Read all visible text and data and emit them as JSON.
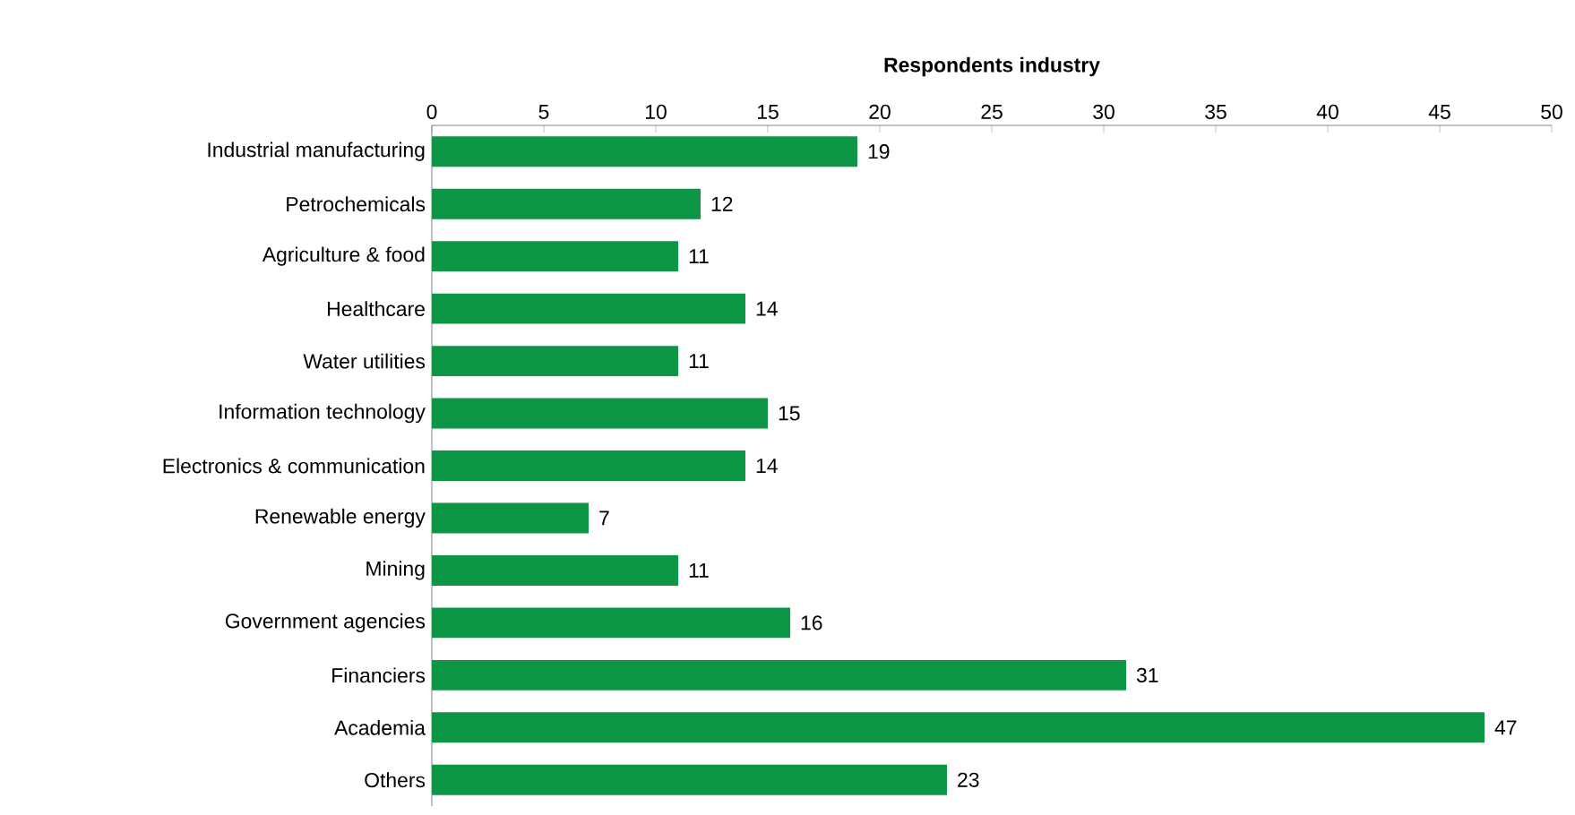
{
  "chart_data": {
    "type": "bar",
    "orientation": "horizontal",
    "title": "**Respondents industry**",
    "categories": [
      "Industrial manufacturing",
      "Petrochemicals",
      "Agriculture & food",
      "Healthcare",
      "Water utilities",
      "Information technology",
      "Electronics & communication",
      "Renewable energy",
      "Mining",
      "Government agencies",
      "Financiers",
      "Academia",
      "Others"
    ],
    "values": [
      19,
      12,
      11,
      14,
      11,
      15,
      14,
      7,
      11,
      16,
      31,
      47,
      23
    ],
    "color": "#0e9647",
    "xlim": [
      0,
      50
    ],
    "xticks": [
      0,
      5,
      10,
      15,
      20,
      25,
      30,
      35,
      40,
      45,
      50
    ],
    "data_labels": true,
    "grid": false
  }
}
